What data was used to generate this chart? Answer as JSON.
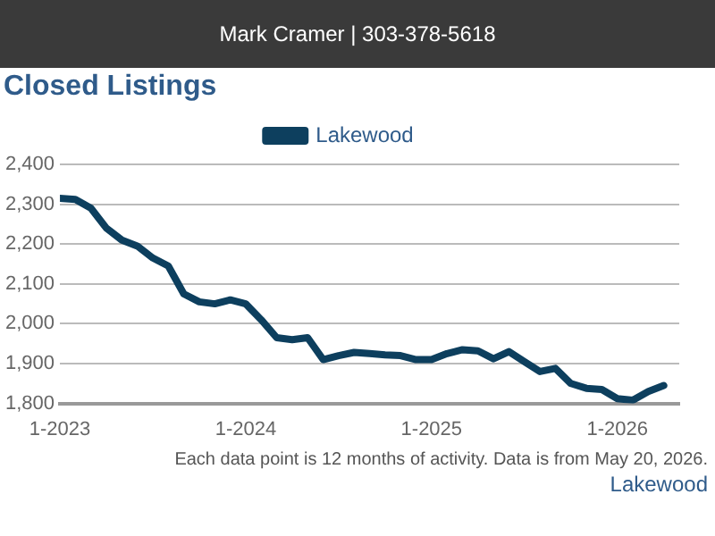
{
  "chart_data": {
    "type": "line",
    "title": "Closed Listings",
    "annotations": [
      "Mark Cramer | 303-378-5618",
      "Lakewood",
      "Each data point is 12 months of activity. Data is from May 20, 2026."
    ],
    "x": [
      "2023-01",
      "2023-02",
      "2023-03",
      "2023-04",
      "2023-05",
      "2023-06",
      "2023-07",
      "2023-08",
      "2023-09",
      "2023-10",
      "2023-11",
      "2023-12",
      "2024-01",
      "2024-02",
      "2024-03",
      "2024-04",
      "2024-05",
      "2024-06",
      "2024-07",
      "2024-08",
      "2024-09",
      "2024-10",
      "2024-11",
      "2024-12",
      "2025-01",
      "2025-02",
      "2025-03",
      "2025-04",
      "2025-05",
      "2025-06",
      "2025-07",
      "2025-08",
      "2025-09",
      "2025-10",
      "2025-11",
      "2025-12",
      "2026-01",
      "2026-02",
      "2026-03",
      "2026-04"
    ],
    "series": [
      {
        "name": "Lakewood",
        "color": "#0d3f5e",
        "values": [
          2315,
          2312,
          2290,
          2240,
          2210,
          2195,
          2165,
          2145,
          2075,
          2055,
          2050,
          2060,
          2050,
          2010,
          1965,
          1960,
          1965,
          1910,
          1920,
          1928,
          1925,
          1922,
          1920,
          1910,
          1910,
          1925,
          1935,
          1932,
          1912,
          1930,
          1905,
          1880,
          1888,
          1850,
          1838,
          1835,
          1812,
          1808,
          1830,
          1845
        ]
      }
    ],
    "xlim": [
      "2023-01",
      "2026-05"
    ],
    "xticks": [
      {
        "value": "2023-01",
        "label": "1-2023"
      },
      {
        "value": "2024-01",
        "label": "1-2024"
      },
      {
        "value": "2025-01",
        "label": "1-2025"
      },
      {
        "value": "2026-01",
        "label": "1-2026"
      }
    ],
    "ylim": [
      1800,
      2400
    ],
    "yticks": [
      {
        "value": 1800,
        "label": "1,800"
      },
      {
        "value": 1900,
        "label": "1,900"
      },
      {
        "value": 2000,
        "label": "2,000"
      },
      {
        "value": 2100,
        "label": "2,100"
      },
      {
        "value": 2200,
        "label": "2,200"
      },
      {
        "value": 2300,
        "label": "2,300"
      },
      {
        "value": 2400,
        "label": "2,400"
      }
    ],
    "grid": "y",
    "legend": "top",
    "marker": "none",
    "line_style": "solid"
  }
}
